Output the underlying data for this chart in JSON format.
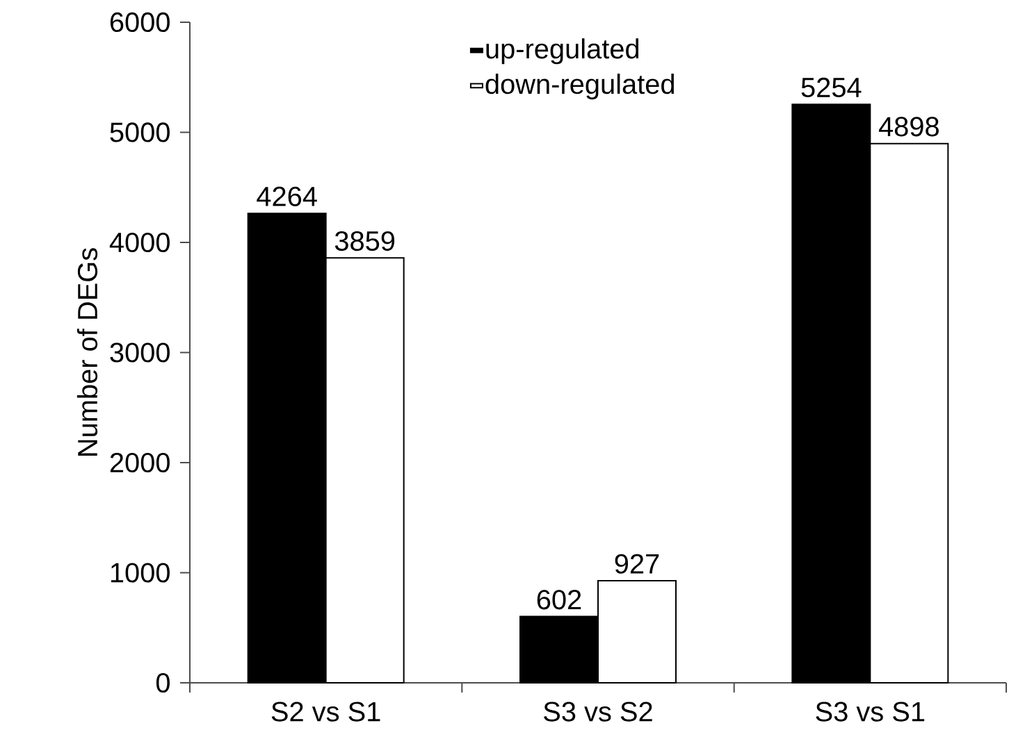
{
  "chart_data": {
    "type": "bar",
    "ylabel": "Number of DEGs",
    "categories": [
      "S2 vs S1",
      "S3 vs S2",
      "S3 vs S1"
    ],
    "series": [
      {
        "name": "up-regulated",
        "color": "#000000",
        "values": [
          4264,
          602,
          5254
        ]
      },
      {
        "name": "down-regulated",
        "color": "#ffffff",
        "values": [
          3859,
          927,
          4898
        ]
      }
    ],
    "ylim": [
      0,
      6000
    ],
    "yticks": [
      0,
      1000,
      2000,
      3000,
      4000,
      5000,
      6000
    ],
    "data_labels": true,
    "legend": "top"
  }
}
